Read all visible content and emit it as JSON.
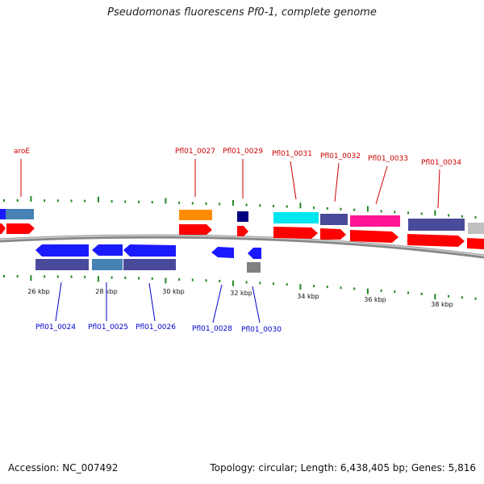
{
  "title": "Pseudomonas fluorescens Pf0-1, complete genome",
  "footer": {
    "accession": "Accession: NC_007492",
    "summary": "Topology: circular; Length: 6,438,405 bp; Genes: 5,816"
  },
  "scale_labels": [
    "26 kbp",
    "28 kbp",
    "30 kbp",
    "32 kbp",
    "34 kbp",
    "36 kbp",
    "38 kbp"
  ],
  "top_gene_labels": [
    "aroE",
    "Pfl01_0027",
    "Pfl01_0029",
    "Pfl01_0031",
    "Pfl01_0032",
    "Pfl01_0033",
    "Pfl01_0034"
  ],
  "bottom_gene_labels": [
    "Pfl01_0024",
    "Pfl01_0025",
    "Pfl01_0026",
    "Pfl01_0028",
    "Pfl01_0030"
  ],
  "colors": {
    "label_forward": "#cc0000",
    "label_reverse": "#0000cc",
    "tick": "#228822",
    "cds_red": "#ff0000",
    "blue": "#1a1aff",
    "slate": "#4a4a9a",
    "steel": "#4682b4",
    "orange": "#ff8c00",
    "navy": "#000080",
    "cyan": "#00e5ee",
    "magenta": "#ff1493",
    "grey": "#808080",
    "silver": "#c0c0c0"
  }
}
